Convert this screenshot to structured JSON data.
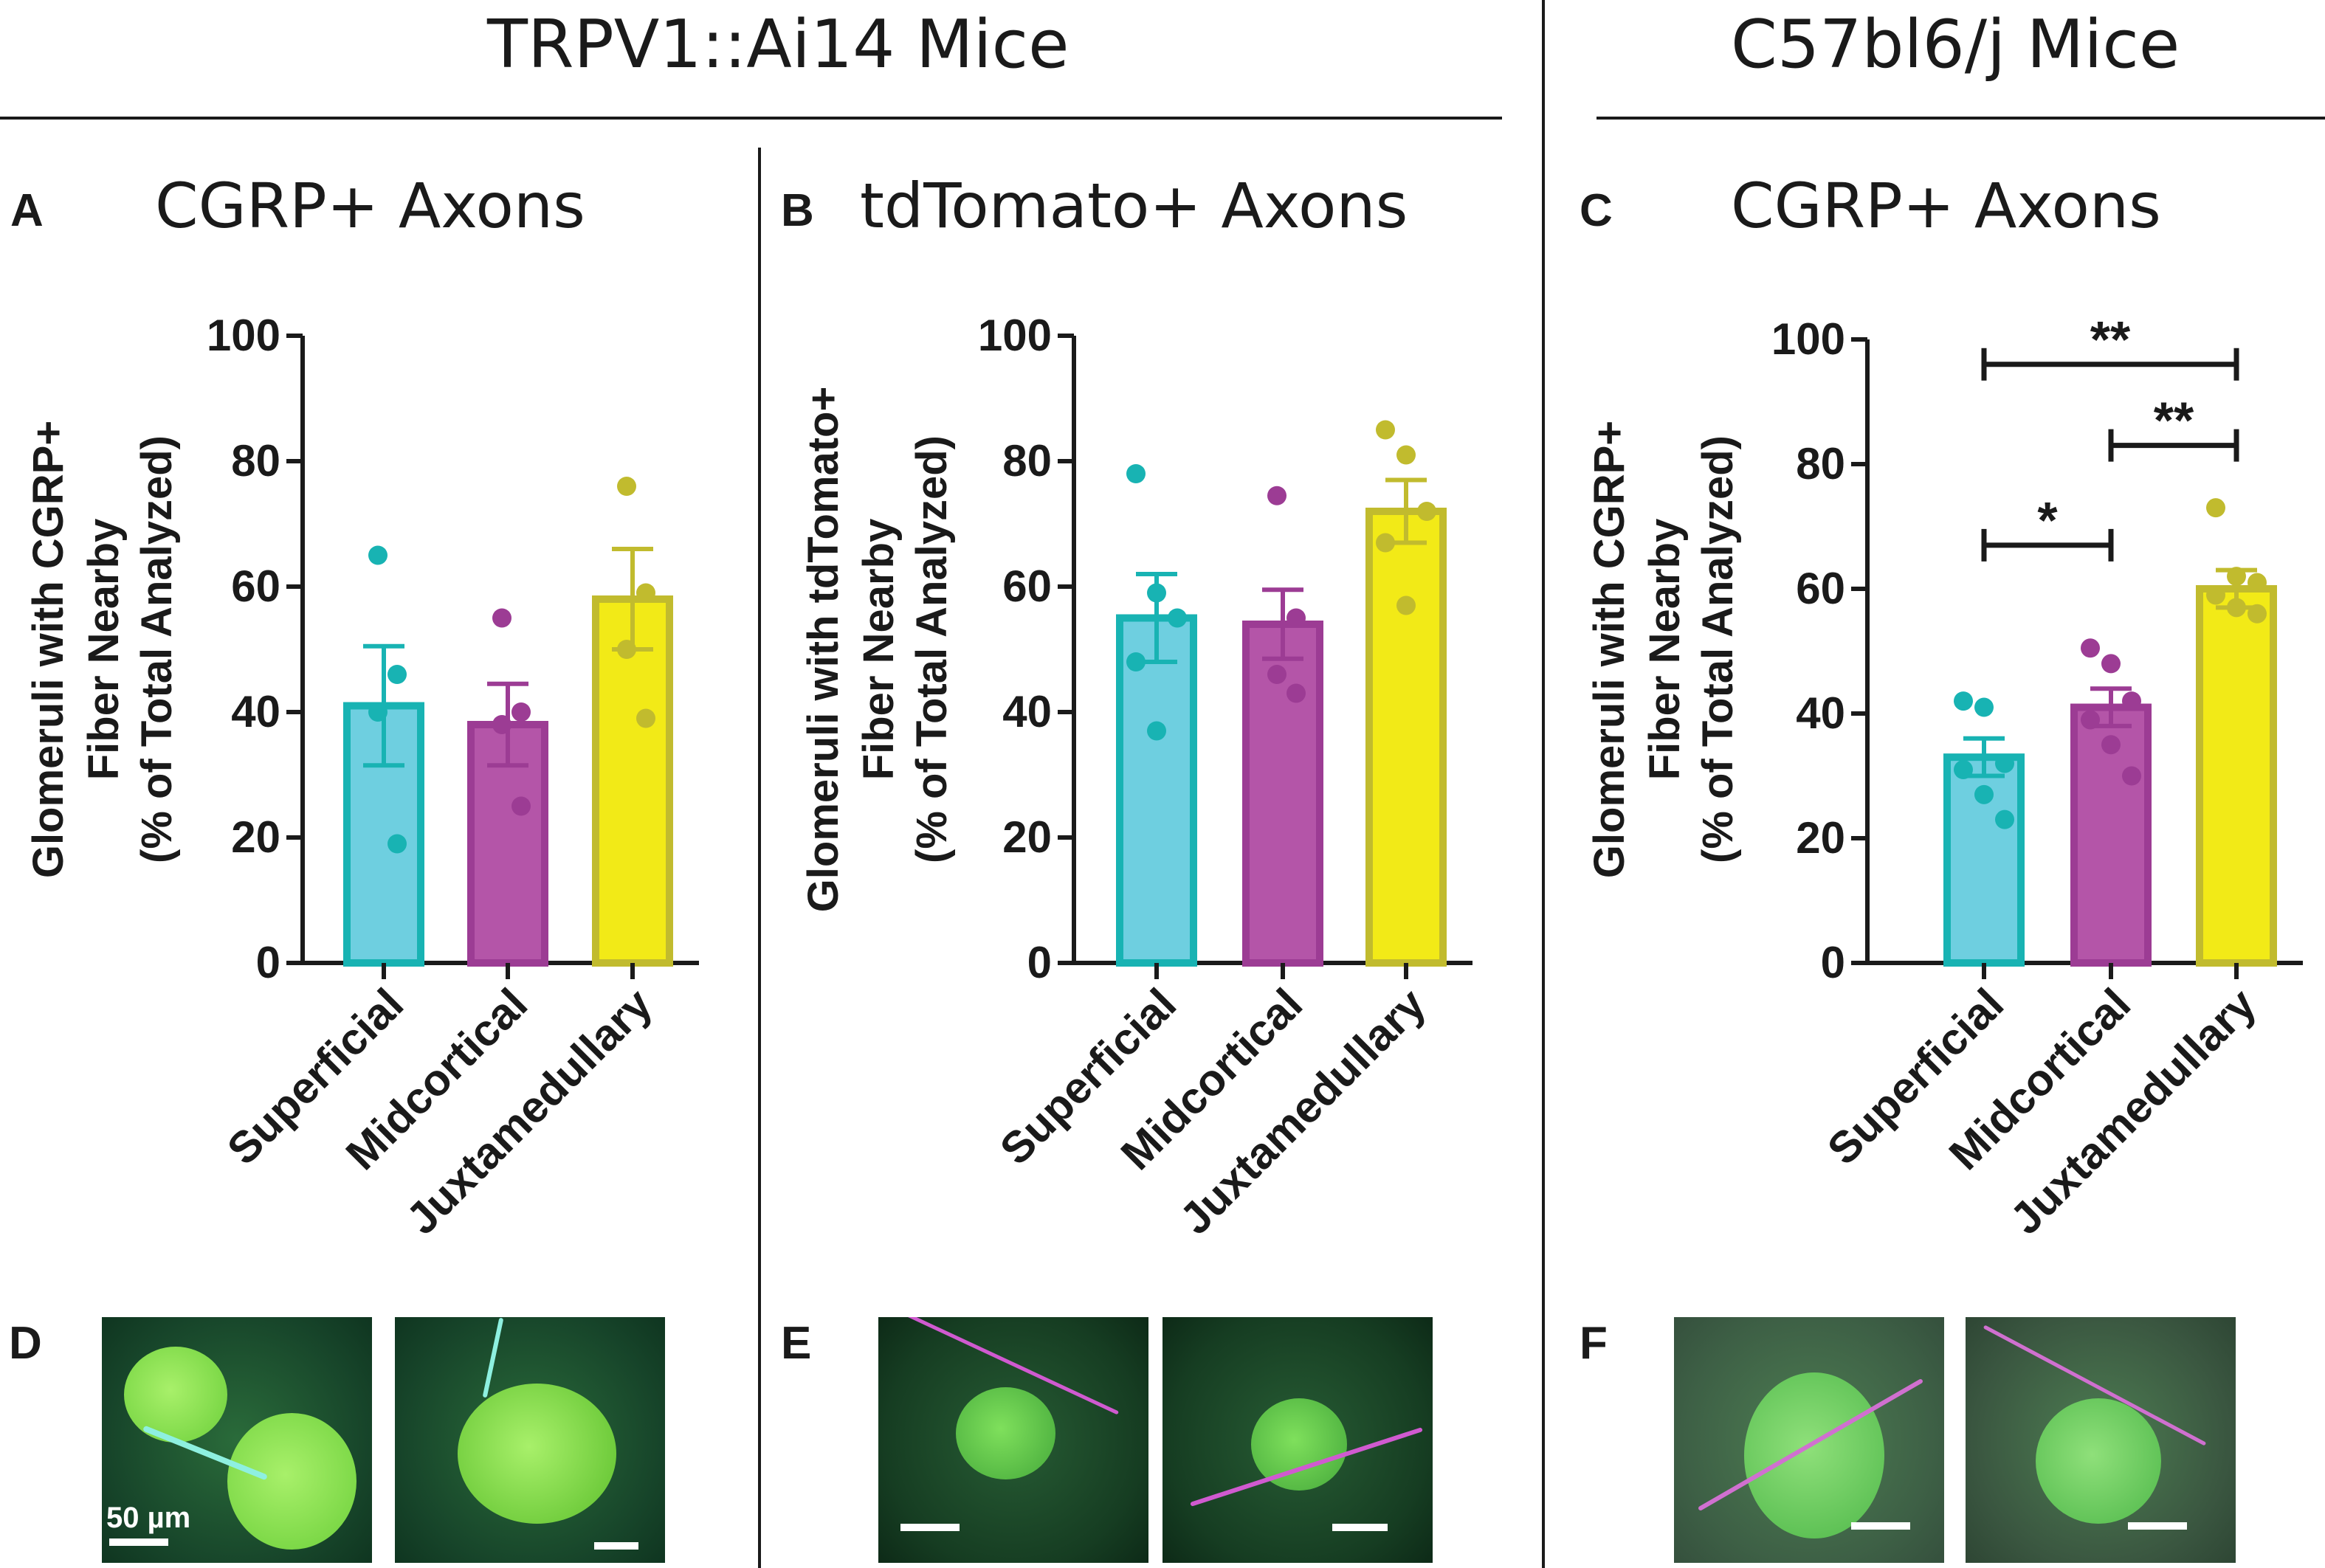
{
  "headers": {
    "left": "TRPV1::Ai14 Mice",
    "right": "C57bl6/j Mice"
  },
  "colors": {
    "superficial_fill": "#6ecfe0",
    "superficial_edge": "#18b3b3",
    "midcortical_fill": "#b455a8",
    "midcortical_edge": "#9c3c94",
    "juxtamedullary_fill": "#f2ea17",
    "juxtamedullary_edge": "#c1bb2e",
    "axis": "#1a1a1a"
  },
  "panels": [
    {
      "letter": "A",
      "title": "CGRP+ Axons"
    },
    {
      "letter": "B",
      "title": "tdTomato+ Axons"
    },
    {
      "letter": "C",
      "title": "CGRP+ Axons"
    }
  ],
  "chart_data": [
    {
      "type": "bar",
      "panel": "A",
      "title": "CGRP+ Axons",
      "categories": [
        "Superficial",
        "Midcortical",
        "Juxtamedullary"
      ],
      "values": [
        41,
        38,
        58
      ],
      "sem": [
        9.5,
        6.5,
        8
      ],
      "points": [
        [
          65,
          46,
          40,
          19
        ],
        [
          55,
          40,
          38,
          25
        ],
        [
          76,
          59,
          50,
          39
        ]
      ],
      "ylabel": [
        "Glomeruli with CGRP+",
        "Fiber Nearby",
        "(% of Total Analyzed)"
      ],
      "ylim": [
        0,
        100
      ],
      "yticks": [
        "0",
        "20",
        "40",
        "60",
        "80",
        "100"
      ],
      "significance": []
    },
    {
      "type": "bar",
      "panel": "B",
      "title": "tdTomato+ Axons",
      "categories": [
        "Superficial",
        "Midcortical",
        "Juxtamedullary"
      ],
      "values": [
        55,
        54,
        72
      ],
      "sem": [
        7,
        5.5,
        5
      ],
      "points": [
        [
          78,
          59,
          55,
          48,
          37
        ],
        [
          74.5,
          55,
          46,
          43
        ],
        [
          85,
          81,
          72,
          67,
          57
        ]
      ],
      "ylabel": [
        "Glomeruli with tdTomato+",
        "Fiber Nearby",
        "(% of Total Analyzed)"
      ],
      "ylim": [
        0,
        100
      ],
      "yticks": [
        "0",
        "20",
        "40",
        "60",
        "80",
        "100"
      ],
      "significance": []
    },
    {
      "type": "bar",
      "panel": "C",
      "title": "CGRP+ Axons",
      "categories": [
        "Superficial",
        "Midcortical",
        "Juxtamedullary"
      ],
      "values": [
        33,
        41,
        60
      ],
      "sem": [
        3,
        3,
        3
      ],
      "points": [
        [
          42,
          41,
          32,
          31,
          27,
          23
        ],
        [
          50.5,
          48,
          42,
          39,
          35,
          30
        ],
        [
          73,
          62,
          61,
          59,
          57,
          56
        ]
      ],
      "ylabel": [
        "Glomeruli with CGRP+",
        "Fiber Nearby",
        "(% of Total Analyzed)"
      ],
      "ylim": [
        0,
        100
      ],
      "yticks": [
        "0",
        "20",
        "40",
        "60",
        "80",
        "100"
      ],
      "significance": [
        {
          "from": 0,
          "to": 2,
          "level": 96,
          "label": "**"
        },
        {
          "from": 1,
          "to": 2,
          "level": 83,
          "label": "**"
        },
        {
          "from": 0,
          "to": 1,
          "level": 67,
          "label": "*"
        }
      ]
    }
  ],
  "image_panels": [
    {
      "letter": "D",
      "scale_label": "50 µm"
    },
    {
      "letter": "E"
    },
    {
      "letter": "F"
    }
  ]
}
